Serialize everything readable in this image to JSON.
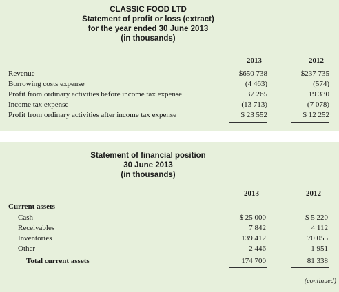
{
  "income_statement": {
    "title_lines": [
      "CLASSIC FOOD LTD",
      "Statement of profit or loss (extract)",
      "for the year ended 30 June 2013",
      "(in thousands)"
    ],
    "columns": [
      "2013",
      "2012"
    ],
    "rows": [
      {
        "label": "Revenue",
        "values": [
          "$650 738",
          "$237 735"
        ]
      },
      {
        "label": "Borrowing costs expense",
        "values": [
          "(4 463)",
          "(574)"
        ]
      },
      {
        "label": "Profit from ordinary activities before income tax expense",
        "values": [
          "37 265",
          "19 330"
        ]
      },
      {
        "label": "Income tax expense",
        "values": [
          "(13 713)",
          "(7 078)"
        ]
      },
      {
        "label": "Profit from ordinary activities after income tax expense",
        "values": [
          "$ 23 552",
          "$ 12 252"
        ]
      }
    ]
  },
  "financial_position": {
    "title_lines": [
      "Statement of financial position",
      "30 June 2013",
      "(in thousands)"
    ],
    "columns": [
      "2013",
      "2012"
    ],
    "section": "Current assets",
    "rows": [
      {
        "label": "Cash",
        "values": [
          "$ 25 000",
          "$ 5 220"
        ]
      },
      {
        "label": "Receivables",
        "values": [
          "7 842",
          "4 112"
        ]
      },
      {
        "label": "Inventories",
        "values": [
          "139 412",
          "70 055"
        ]
      },
      {
        "label": "Other",
        "values": [
          "2 446",
          "1 951"
        ]
      }
    ],
    "total": {
      "label": "Total current assets",
      "values": [
        "174 700",
        "81 338"
      ]
    }
  },
  "footer": "(continued)"
}
